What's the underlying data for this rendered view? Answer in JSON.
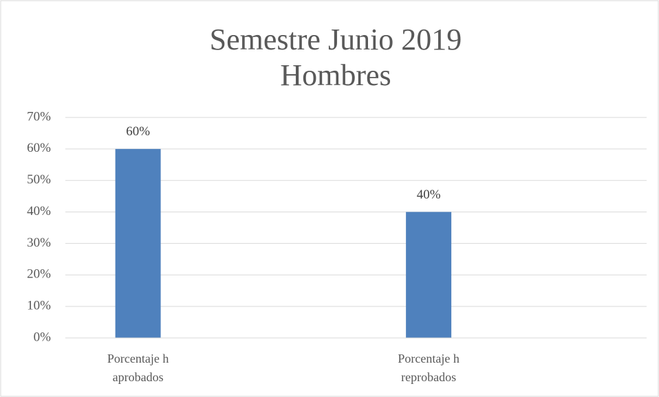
{
  "chart_data": {
    "type": "bar",
    "title": [
      "Semestre Junio 2019",
      "Hombres"
    ],
    "categories": [
      "Porcentaje h aprobados",
      "Porcentaje h reprobados"
    ],
    "values": [
      60,
      40
    ],
    "value_labels": [
      "60%",
      "40%"
    ],
    "color": "#4f81bd",
    "ylim": [
      0,
      70
    ],
    "yticks": [
      {
        "value": 0,
        "label": "0%"
      },
      {
        "value": 10,
        "label": "10%"
      },
      {
        "value": 20,
        "label": "20%"
      },
      {
        "value": 30,
        "label": "30%"
      },
      {
        "value": 40,
        "label": "40%"
      },
      {
        "value": 50,
        "label": "50%"
      },
      {
        "value": 60,
        "label": "60%"
      },
      {
        "value": 70,
        "label": "70%"
      }
    ],
    "grid": true
  }
}
